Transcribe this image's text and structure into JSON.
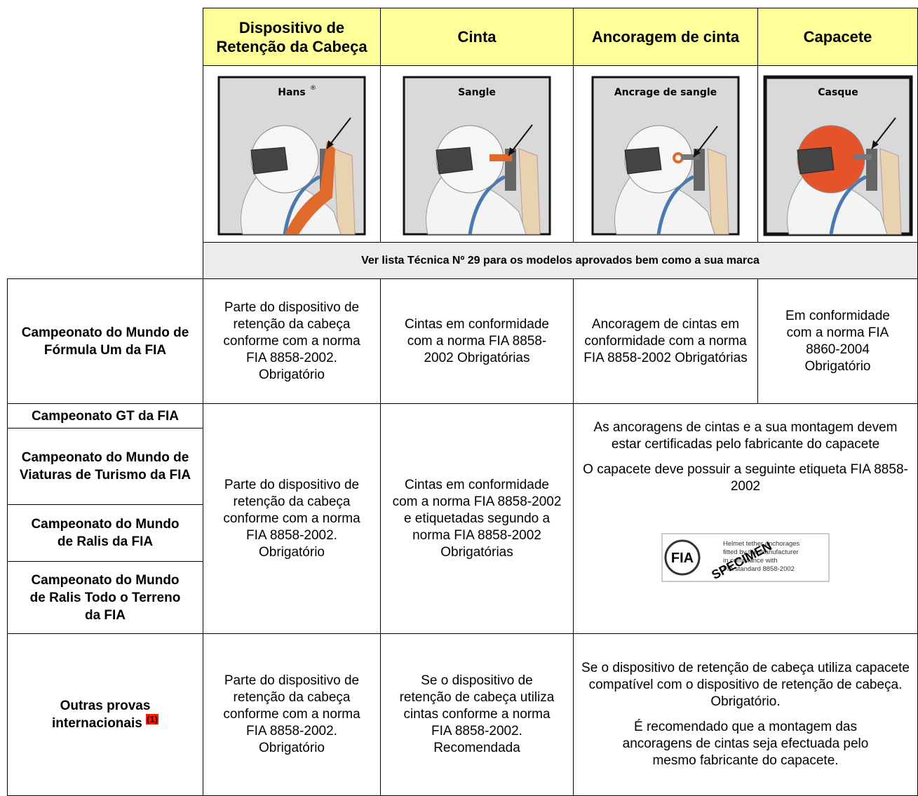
{
  "header": {
    "columns": [
      "Dispositivo de Retenção da Cabeça",
      "Cinta",
      "Ancoragem de cinta",
      "Capacete"
    ]
  },
  "images": [
    {
      "label": "Hans",
      "sup": "®"
    },
    {
      "label": "Sangle"
    },
    {
      "label": "Ancrage de sangle"
    },
    {
      "label": "Casque"
    }
  ],
  "note": "Ver lista Técnica Nº 29 para os modelos aprovados bem como a sua marca",
  "rows": [
    {
      "label": "Campeonato do Mundo de Fórmula Um da FIA",
      "cells": [
        "Parte do dispositivo de retenção da cabeça conforme com a norma FIA 8858-2002. Obrigatório",
        "Cintas em conformidade com a norma FIA 8858-2002 Obrigatórias",
        "Ancoragem de cintas em conformidade com a norma FIA 8858-2002 Obrigatórias",
        "Em conformidade com a norma FIA 8860-2004 Obrigatório"
      ]
    },
    {
      "labels": [
        "Campeonato GT da FIA",
        "Campeonato do Mundo de Viaturas de Turismo da FIA",
        "Campeonato do Mundo de Ralis da FIA",
        "Campeonato do Mundo de Ralis Todo o Terreno da FIA"
      ],
      "cells": [
        "Parte do dispositivo de retenção da cabeça conforme com a norma FIA 8858-2002. Obrigatório",
        "Cintas em conformidade com a norma FIA 8858-2002 e etiquetadas segundo a norma FIA 8858-2002 Obrigatórias"
      ],
      "merged": [
        "As ancoragens de cintas e a sua montagem devem estar certificadas pelo fabricante do capacete",
        "O capacete deve possuir a seguinte etiqueta FIA 8858-2002"
      ],
      "sticker": {
        "logo": "FIA",
        "lines": [
          "Helmet tether anchorages",
          "fitted by the manufacturer",
          "in compliance with",
          "FIA standard 8858-2002"
        ],
        "stamp": "SPECIMEN"
      }
    },
    {
      "label": "Outras provas internacionais",
      "footnote": "(1)",
      "cells": [
        "Parte do dispositivo de retenção da cabeça conforme com a norma FIA 8858-2002. Obrigatório",
        "Se o dispositivo de retenção de cabeça utiliza cintas conforme a norma FIA 8858-2002. Recomendada"
      ],
      "merged": [
        "Se o dispositivo de retenção de cabeça utiliza capacete compatível com o dispositivo de retenção de cabeça. Obrigatório.",
        "É recomendado que a montagem das ancoragens de cintas seja efectuada pelo mesmo fabricante do capacete."
      ]
    }
  ]
}
